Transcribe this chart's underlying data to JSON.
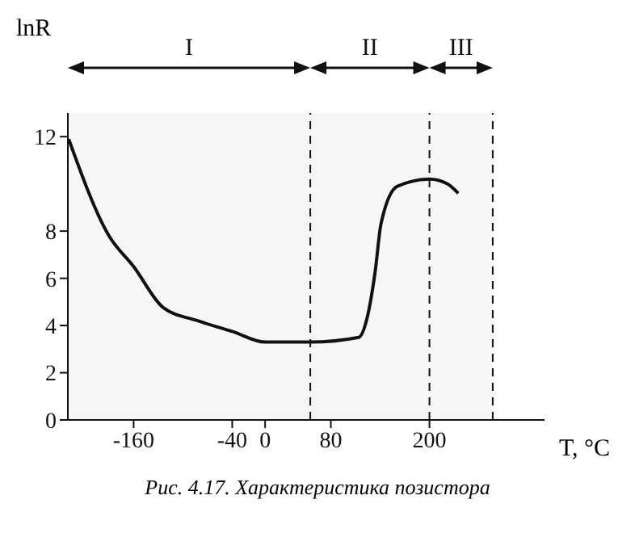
{
  "chart_data": {
    "type": "line",
    "xlabel": "T, °C",
    "ylabel": "lnR",
    "x": [
      -239,
      -190,
      -160,
      -124,
      -82,
      -40,
      0,
      55,
      114,
      124,
      134,
      141,
      161,
      200,
      222,
      235
    ],
    "series": [
      {
        "color": "#111111",
        "values": [
          11.9,
          7.8,
          6.5,
          4.76,
          4.2,
          3.75,
          3.3,
          3.3,
          3.5,
          4.3,
          6.3,
          8.3,
          9.9,
          10.2,
          10.0,
          9.6
        ]
      }
    ],
    "xlim": [
      -240,
      340
    ],
    "ylim": [
      0,
      13
    ],
    "xticks": [
      -160,
      -40,
      0,
      80,
      200
    ],
    "yticks": [
      0,
      2,
      4,
      6,
      8,
      12
    ],
    "grid": false,
    "legend": false,
    "marker": "none",
    "line_style": "solid",
    "ref_lines": [
      {
        "axis": "x",
        "value": 55,
        "line_style": "dashed"
      },
      {
        "axis": "x",
        "value": 200,
        "line_style": "dashed"
      },
      {
        "axis": "x",
        "value": 277,
        "line_style": "dashed"
      }
    ],
    "bands": [
      {
        "axis": "x",
        "from": -240,
        "to": 55,
        "label": "I",
        "color": "#f6f6f6"
      },
      {
        "axis": "x",
        "from": 55,
        "to": 200,
        "label": "II",
        "color": "#f6f6f6"
      },
      {
        "axis": "x",
        "from": 200,
        "to": 277,
        "label": "III",
        "color": "#f6f6f6"
      }
    ],
    "annotations": [
      "Рис. 4.17. Характеристика позистора"
    ]
  }
}
